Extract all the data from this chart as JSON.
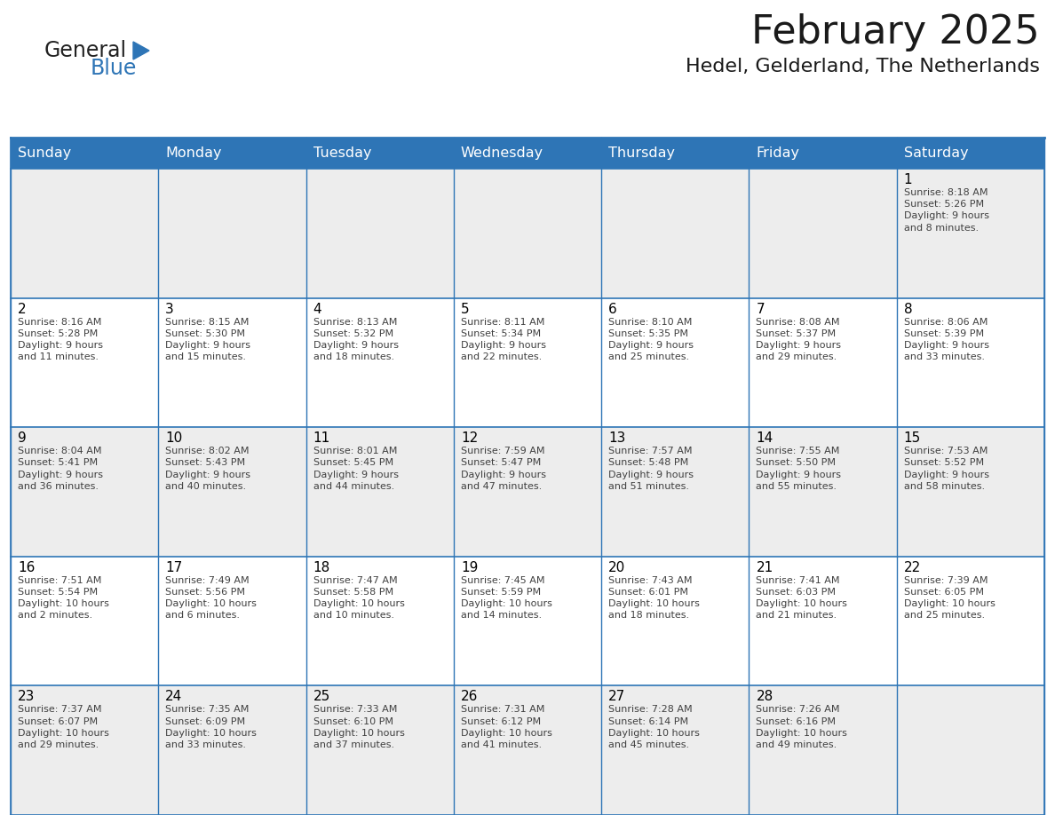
{
  "title": "February 2025",
  "subtitle": "Hedel, Gelderland, The Netherlands",
  "header_bg_color": "#2E75B6",
  "header_text_color": "#FFFFFF",
  "cell_bg_odd": "#EDEDED",
  "cell_bg_even": "#FFFFFF",
  "day_number_color": "#000000",
  "text_color": "#404040",
  "border_color": "#2E75B6",
  "days_of_week": [
    "Sunday",
    "Monday",
    "Tuesday",
    "Wednesday",
    "Thursday",
    "Friday",
    "Saturday"
  ],
  "weeks": [
    [
      {
        "day": null,
        "info": null
      },
      {
        "day": null,
        "info": null
      },
      {
        "day": null,
        "info": null
      },
      {
        "day": null,
        "info": null
      },
      {
        "day": null,
        "info": null
      },
      {
        "day": null,
        "info": null
      },
      {
        "day": 1,
        "info": "Sunrise: 8:18 AM\nSunset: 5:26 PM\nDaylight: 9 hours\nand 8 minutes."
      }
    ],
    [
      {
        "day": 2,
        "info": "Sunrise: 8:16 AM\nSunset: 5:28 PM\nDaylight: 9 hours\nand 11 minutes."
      },
      {
        "day": 3,
        "info": "Sunrise: 8:15 AM\nSunset: 5:30 PM\nDaylight: 9 hours\nand 15 minutes."
      },
      {
        "day": 4,
        "info": "Sunrise: 8:13 AM\nSunset: 5:32 PM\nDaylight: 9 hours\nand 18 minutes."
      },
      {
        "day": 5,
        "info": "Sunrise: 8:11 AM\nSunset: 5:34 PM\nDaylight: 9 hours\nand 22 minutes."
      },
      {
        "day": 6,
        "info": "Sunrise: 8:10 AM\nSunset: 5:35 PM\nDaylight: 9 hours\nand 25 minutes."
      },
      {
        "day": 7,
        "info": "Sunrise: 8:08 AM\nSunset: 5:37 PM\nDaylight: 9 hours\nand 29 minutes."
      },
      {
        "day": 8,
        "info": "Sunrise: 8:06 AM\nSunset: 5:39 PM\nDaylight: 9 hours\nand 33 minutes."
      }
    ],
    [
      {
        "day": 9,
        "info": "Sunrise: 8:04 AM\nSunset: 5:41 PM\nDaylight: 9 hours\nand 36 minutes."
      },
      {
        "day": 10,
        "info": "Sunrise: 8:02 AM\nSunset: 5:43 PM\nDaylight: 9 hours\nand 40 minutes."
      },
      {
        "day": 11,
        "info": "Sunrise: 8:01 AM\nSunset: 5:45 PM\nDaylight: 9 hours\nand 44 minutes."
      },
      {
        "day": 12,
        "info": "Sunrise: 7:59 AM\nSunset: 5:47 PM\nDaylight: 9 hours\nand 47 minutes."
      },
      {
        "day": 13,
        "info": "Sunrise: 7:57 AM\nSunset: 5:48 PM\nDaylight: 9 hours\nand 51 minutes."
      },
      {
        "day": 14,
        "info": "Sunrise: 7:55 AM\nSunset: 5:50 PM\nDaylight: 9 hours\nand 55 minutes."
      },
      {
        "day": 15,
        "info": "Sunrise: 7:53 AM\nSunset: 5:52 PM\nDaylight: 9 hours\nand 58 minutes."
      }
    ],
    [
      {
        "day": 16,
        "info": "Sunrise: 7:51 AM\nSunset: 5:54 PM\nDaylight: 10 hours\nand 2 minutes."
      },
      {
        "day": 17,
        "info": "Sunrise: 7:49 AM\nSunset: 5:56 PM\nDaylight: 10 hours\nand 6 minutes."
      },
      {
        "day": 18,
        "info": "Sunrise: 7:47 AM\nSunset: 5:58 PM\nDaylight: 10 hours\nand 10 minutes."
      },
      {
        "day": 19,
        "info": "Sunrise: 7:45 AM\nSunset: 5:59 PM\nDaylight: 10 hours\nand 14 minutes."
      },
      {
        "day": 20,
        "info": "Sunrise: 7:43 AM\nSunset: 6:01 PM\nDaylight: 10 hours\nand 18 minutes."
      },
      {
        "day": 21,
        "info": "Sunrise: 7:41 AM\nSunset: 6:03 PM\nDaylight: 10 hours\nand 21 minutes."
      },
      {
        "day": 22,
        "info": "Sunrise: 7:39 AM\nSunset: 6:05 PM\nDaylight: 10 hours\nand 25 minutes."
      }
    ],
    [
      {
        "day": 23,
        "info": "Sunrise: 7:37 AM\nSunset: 6:07 PM\nDaylight: 10 hours\nand 29 minutes."
      },
      {
        "day": 24,
        "info": "Sunrise: 7:35 AM\nSunset: 6:09 PM\nDaylight: 10 hours\nand 33 minutes."
      },
      {
        "day": 25,
        "info": "Sunrise: 7:33 AM\nSunset: 6:10 PM\nDaylight: 10 hours\nand 37 minutes."
      },
      {
        "day": 26,
        "info": "Sunrise: 7:31 AM\nSunset: 6:12 PM\nDaylight: 10 hours\nand 41 minutes."
      },
      {
        "day": 27,
        "info": "Sunrise: 7:28 AM\nSunset: 6:14 PM\nDaylight: 10 hours\nand 45 minutes."
      },
      {
        "day": 28,
        "info": "Sunrise: 7:26 AM\nSunset: 6:16 PM\nDaylight: 10 hours\nand 49 minutes."
      },
      {
        "day": null,
        "info": null
      }
    ]
  ],
  "title_fontsize": 32,
  "subtitle_fontsize": 16,
  "header_fontsize": 11.5,
  "day_number_fontsize": 11,
  "cell_text_fontsize": 8,
  "logo_fontsize_general": 17,
  "logo_fontsize_blue": 17
}
